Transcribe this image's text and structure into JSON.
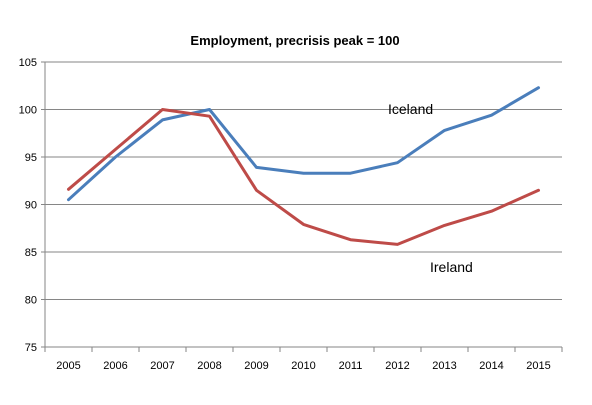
{
  "chart_data": {
    "type": "line",
    "title": "Employment, precrisis peak = 100",
    "xlabel": "",
    "ylabel": "",
    "x": [
      "2005",
      "2006",
      "2007",
      "2008",
      "2009",
      "2010",
      "2011",
      "2012",
      "2013",
      "2014",
      "2015"
    ],
    "ylim": [
      75,
      105
    ],
    "yticks": [
      75,
      80,
      85,
      90,
      95,
      100,
      105
    ],
    "grid": true,
    "legend": "none",
    "series": [
      {
        "name": "Iceland",
        "color": "#4A7EBB",
        "values": [
          90.5,
          95.0,
          98.9,
          100.0,
          93.9,
          93.3,
          93.3,
          94.4,
          97.8,
          99.4,
          102.3
        ]
      },
      {
        "name": "Ireland",
        "color": "#BE4B48",
        "values": [
          91.6,
          95.8,
          100.0,
          99.3,
          91.5,
          87.9,
          86.3,
          85.8,
          87.8,
          89.3,
          91.5
        ]
      }
    ]
  }
}
